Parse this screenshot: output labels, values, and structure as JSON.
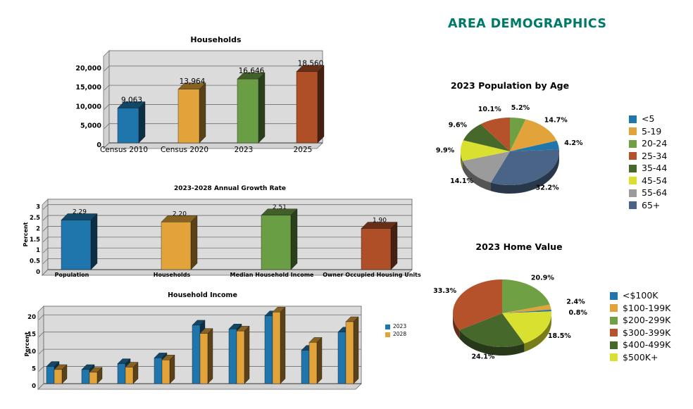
{
  "page_title": "AREA DEMOGRAPHICS",
  "accent_color": "#007A68",
  "plot_bg_color": "#DBDBDB",
  "chart_data": [
    {
      "type": "bar",
      "title": "Households",
      "categories": [
        "Census 2010",
        "Census 2020",
        "2023",
        "2025"
      ],
      "values": [
        9063,
        13964,
        16646,
        18560
      ],
      "data_labels": [
        "9,063",
        "13,964",
        "16,646",
        "18,560"
      ],
      "bar_colors": [
        "#1E76AC",
        "#E2A33B",
        "#6A9E45",
        "#AE4F28"
      ],
      "ylabel": "",
      "ylim": [
        0,
        24000
      ],
      "ytick_step": 5000,
      "ytick_labels": [
        "0",
        "5,000",
        "10,000",
        "15,000",
        "20,000"
      ],
      "grid": true
    },
    {
      "type": "bar",
      "title": "2023-2028 Annual Growth Rate",
      "categories": [
        "Population",
        "Households",
        "Median Household Income",
        "Owner Occupied Housing Units"
      ],
      "values": [
        2.29,
        2.2,
        2.51,
        1.9
      ],
      "data_labels": [
        "2.29",
        "2.20",
        "2.51",
        "1.90"
      ],
      "bar_colors": [
        "#1E76AC",
        "#E2A33B",
        "#6A9E45",
        "#AE4F28"
      ],
      "ylabel": "Percent",
      "ylim": [
        0,
        3.25
      ],
      "ytick_step": 0.5,
      "ytick_labels": [
        "0",
        "0.5",
        "1",
        "1.5",
        "2",
        "2.5",
        "3"
      ],
      "grid": true
    },
    {
      "type": "bar",
      "title": "Household Income",
      "categories": [
        "",
        "",
        "",
        "",
        "",
        "",
        "",
        "",
        ""
      ],
      "series": [
        {
          "name": "2023",
          "color": "#1E76AC",
          "values": [
            5.0,
            4.1,
            5.8,
            7.5,
            17.0,
            15.9,
            19.7,
            9.7,
            15.0
          ]
        },
        {
          "name": "2028",
          "color": "#E2A33B",
          "values": [
            4.1,
            3.3,
            4.8,
            6.9,
            14.6,
            15.3,
            20.8,
            12.0,
            18.0
          ]
        }
      ],
      "ylabel": "Percent",
      "ylim": [
        0,
        22.5
      ],
      "ytick_step": 5,
      "ytick_labels": [
        "0",
        "5",
        "10",
        "15",
        "20"
      ],
      "legend_position": "right",
      "grid": true
    },
    {
      "type": "pie",
      "title": "2023 Population by Age",
      "legend_position": "right",
      "slices": [
        {
          "label": "<5",
          "value": 4.2,
          "pct_label": "4.2%",
          "color": "#1E76AC"
        },
        {
          "label": "5-19",
          "value": 14.7,
          "pct_label": "14.7%",
          "color": "#E2A33B"
        },
        {
          "label": "20-24",
          "value": 5.2,
          "pct_label": "5.2%",
          "color": "#6FA044"
        },
        {
          "label": "25-34",
          "value": 10.1,
          "pct_label": "10.1%",
          "color": "#B5512B"
        },
        {
          "label": "35-44",
          "value": 9.6,
          "pct_label": "9.6%",
          "color": "#47682B"
        },
        {
          "label": "45-54",
          "value": 9.9,
          "pct_label": "9.9%",
          "color": "#D9E030"
        },
        {
          "label": "55-64",
          "value": 14.1,
          "pct_label": "14.1%",
          "color": "#9B9B9B"
        },
        {
          "label": "65+",
          "value": 32.2,
          "pct_label": "32.2%",
          "color": "#4A6488"
        }
      ]
    },
    {
      "type": "pie",
      "title": "2023 Home Value",
      "legend_position": "right",
      "slices": [
        {
          "label": "<$100K",
          "value": 0.8,
          "pct_label": "0.8%",
          "color": "#1E76AC"
        },
        {
          "label": "$100-199K",
          "value": 2.4,
          "pct_label": "2.4%",
          "color": "#E2A33B"
        },
        {
          "label": "$200-299K",
          "value": 20.9,
          "pct_label": "20.9%",
          "color": "#6FA044"
        },
        {
          "label": "$300-399K",
          "value": 33.3,
          "pct_label": "33.3%",
          "color": "#B5512B"
        },
        {
          "label": "$400-499K",
          "value": 24.1,
          "pct_label": "24.1%",
          "color": "#47682B"
        },
        {
          "label": "$500K+",
          "value": 18.5,
          "pct_label": "18.5%",
          "color": "#D9E030"
        }
      ]
    }
  ]
}
